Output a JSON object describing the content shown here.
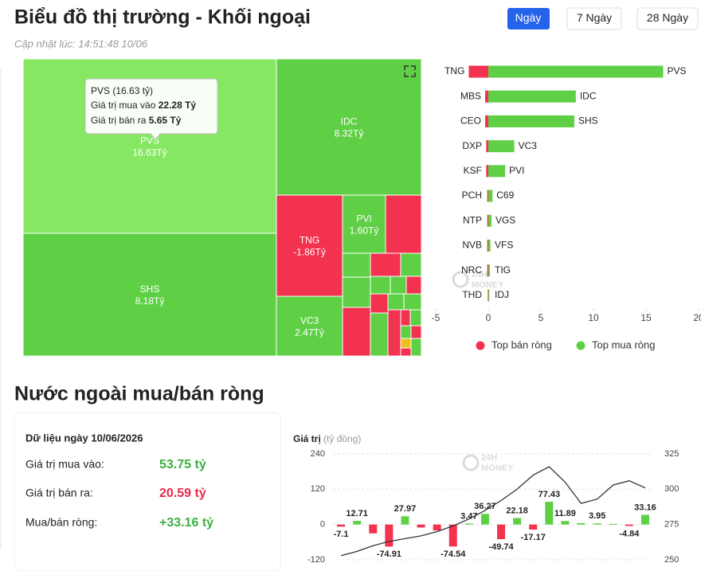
{
  "header": {
    "title": "Biểu đồ thị trường - Khối ngoại",
    "updated": "Cập nhật lúc: 14:51:48 10/06",
    "tabs": [
      "Ngày",
      "7 Ngày",
      "28 Ngày"
    ]
  },
  "watermark": [
    "24H",
    "MONEY"
  ],
  "section_title": "Nước ngoài mua/bán ròng",
  "summary": {
    "title": "Dữ liệu ngày 10/06/2026",
    "rows": [
      [
        "Giá trị mua vào:",
        "53.75 tỷ"
      ],
      [
        "Giá trị bán ra:",
        "20.59 tỷ"
      ],
      [
        "Mua/bán ròng:",
        "+33.16 tỷ"
      ]
    ]
  },
  "chart_data": [
    {
      "type": "treemap",
      "categories": [
        "PVS",
        "IDC",
        "SHS",
        "TNG",
        "PVI",
        "VC3"
      ],
      "values": [
        16.63,
        8.32,
        8.18,
        -1.86,
        1.6,
        2.47
      ],
      "value_labels": [
        "16.63Tỷ",
        "8.32Tỷ",
        "8.18Tỷ",
        "-1.86Tỷ",
        "1.60Tỷ",
        "2.47Tỷ"
      ],
      "colors": {
        "positive": "#5fd045",
        "negative": "#f2324f",
        "highlight": "#86e862"
      },
      "tooltip": {
        "title": "PVS (16.63 tỷ)",
        "rows": [
          {
            "label": "Giá trị mua vào",
            "value": "22.28 Tỷ"
          },
          {
            "label": "Giá trị bán ra",
            "value": "5.65 Tỷ"
          }
        ]
      }
    },
    {
      "type": "bar",
      "orientation": "horizontal",
      "legend": "bottom",
      "xlim": [
        -5,
        20
      ],
      "xticks": [
        -5,
        0,
        5,
        10,
        15,
        20
      ],
      "series": [
        {
          "name": "Top bán ròng",
          "color": "#f2324f",
          "categories": [
            "TNG",
            "MBS",
            "CEO",
            "DXP",
            "KSF",
            "PCH",
            "NTP",
            "NVB",
            "NRC",
            "THD"
          ],
          "values": [
            -1.86,
            -0.3,
            -0.3,
            -0.2,
            -0.2,
            -0.1,
            -0.1,
            -0.1,
            -0.1,
            -0.05
          ]
        },
        {
          "name": "Top mua ròng",
          "color": "#5fd045",
          "categories": [
            "PVS",
            "IDC",
            "SHS",
            "VC3",
            "PVI",
            "C69",
            "VGS",
            "VFS",
            "TIG",
            "IDJ"
          ],
          "values": [
            16.63,
            8.32,
            8.18,
            2.47,
            1.6,
            0.4,
            0.3,
            0.2,
            0.15,
            0.1
          ]
        }
      ]
    },
    {
      "type": "combo",
      "ylabel": "Giá trị",
      "yunit": "(tỷ đồng)",
      "ylim": [
        -120,
        240
      ],
      "yticks": [
        -120,
        0,
        120,
        240
      ],
      "y2lim": [
        250,
        325
      ],
      "y2ticks": [
        250,
        275,
        300,
        325
      ],
      "grid": true,
      "series": [
        {
          "type": "bar",
          "colors": {
            "positive": "#5fd045",
            "negative": "#f2324f"
          },
          "values": [
            -7.1,
            12.71,
            -30,
            -74.91,
            27.97,
            -10,
            -20,
            -74.54,
            3.47,
            36.27,
            -49.74,
            22.18,
            -17.17,
            77.43,
            11.89,
            5,
            3.95,
            2,
            -4.84,
            33.16
          ],
          "value_labels": [
            "-7.1",
            "12.71",
            null,
            "-74.91",
            "27.97",
            null,
            null,
            "-74.54",
            "3.47",
            "36.27",
            "-49.74",
            "22.18",
            "-17.17",
            "77.43",
            "11.89",
            null,
            "3.95",
            null,
            "-4.84",
            "33.16"
          ]
        },
        {
          "type": "line",
          "axis": "y2",
          "color": "#333333",
          "values": [
            253,
            256,
            260,
            263,
            265,
            267,
            270,
            274,
            279,
            285,
            292,
            300,
            310,
            316,
            305,
            290,
            293,
            303,
            306,
            301
          ]
        }
      ]
    }
  ]
}
